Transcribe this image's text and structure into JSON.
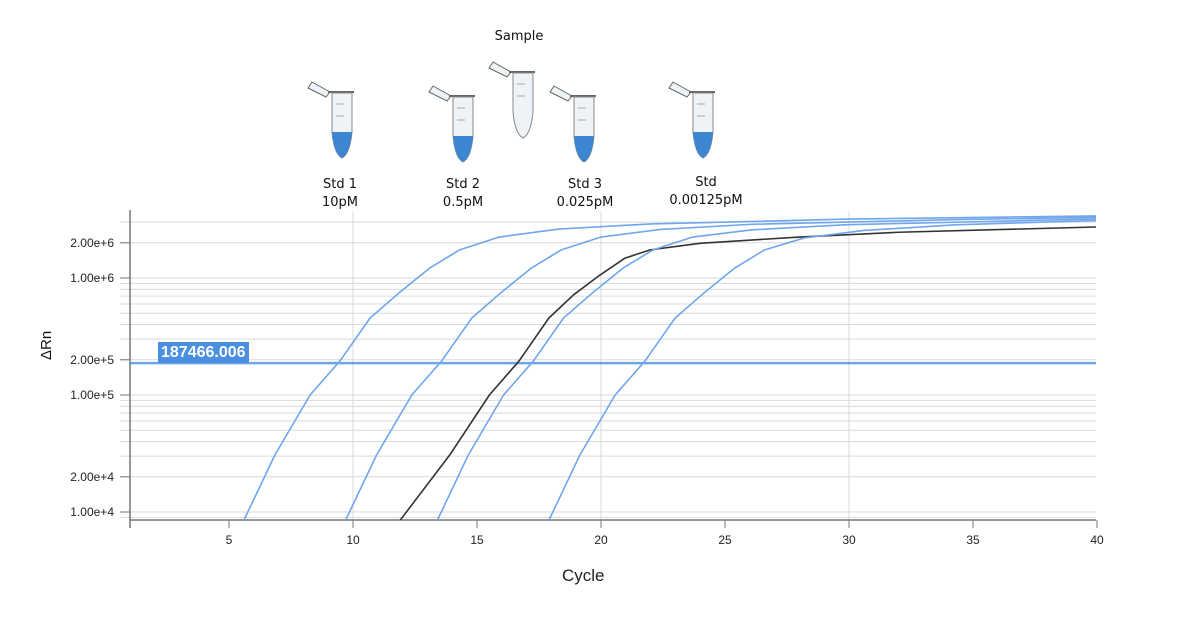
{
  "chart_data": {
    "type": "line",
    "title": "",
    "xlabel": "Cycle",
    "ylabel": "ΔRn",
    "y_scale": "log",
    "xlim": [
      1,
      40
    ],
    "ylim": [
      8500,
      3700000
    ],
    "x_ticks": [
      5,
      10,
      15,
      20,
      25,
      30,
      35,
      40
    ],
    "y_tick_labels": [
      {
        "value": 2000000,
        "label": "2.00e+6"
      },
      {
        "value": 1000000,
        "label": "1.00e+6"
      },
      {
        "value": 200000,
        "label": "2.00e+5"
      },
      {
        "value": 100000,
        "label": "1.00e+5"
      },
      {
        "value": 20000,
        "label": "2.00e+4"
      },
      {
        "value": 10000,
        "label": "1.00e+4"
      }
    ],
    "grid": true,
    "threshold": {
      "value": 187466.006,
      "label": "187466.006",
      "color": "#4a8fe0"
    },
    "series": [
      {
        "color": "#6fa6ec",
        "x": [
          5.6,
          6.85,
          8.27,
          9.48,
          10.69,
          11.9,
          13.1,
          14.3,
          15.9,
          18.3,
          22,
          30,
          40
        ],
        "y": [
          8500,
          30700,
          100000,
          196000,
          455000,
          760000,
          1220000,
          1740000,
          2240000,
          2620000,
          2900000,
          3190000,
          3390000
        ]
      },
      {
        "color": "#6fa6ec",
        "x": [
          9.7,
          10.95,
          12.37,
          13.58,
          14.79,
          16,
          17.2,
          18.4,
          20,
          22.4,
          26.1,
          34.1,
          40
        ],
        "y": [
          8500,
          30700,
          100000,
          196000,
          455000,
          760000,
          1220000,
          1740000,
          2240000,
          2600000,
          2880000,
          3150000,
          3300000
        ]
      },
      {
        "color": "#333333",
        "x": [
          11.9,
          13.9,
          15.5,
          16.7,
          17.9,
          18.9,
          19.96,
          20.97,
          21.98,
          23.99,
          28,
          32,
          40
        ],
        "y": [
          8500,
          30700,
          100000,
          196000,
          455000,
          720000,
          1060000,
          1480000,
          1740000,
          1980000,
          2240000,
          2460000,
          2730000
        ]
      },
      {
        "color": "#6fa6ec",
        "x": [
          13.4,
          14.65,
          16.07,
          17.28,
          18.49,
          19.7,
          20.9,
          22.1,
          23.7,
          26.1,
          29.8,
          37.8,
          40
        ],
        "y": [
          8500,
          30700,
          100000,
          196000,
          455000,
          760000,
          1220000,
          1740000,
          2240000,
          2580000,
          2850000,
          3120000,
          3200000
        ]
      },
      {
        "color": "#6fa6ec",
        "x": [
          17.9,
          19.15,
          20.57,
          21.78,
          22.99,
          24.2,
          25.4,
          26.6,
          28.2,
          30.6,
          34.3,
          40
        ],
        "y": [
          8500,
          30700,
          100000,
          196000,
          455000,
          760000,
          1220000,
          1740000,
          2200000,
          2550000,
          2850000,
          3100000
        ]
      }
    ]
  },
  "tubes": [
    {
      "label_line1": "Std 1",
      "label_line2": "10pM",
      "filled": true
    },
    {
      "label_line1": "Std 2",
      "label_line2": "0.5pM",
      "filled": true
    },
    {
      "label_line1": "Sample",
      "label_line2": "",
      "filled": false
    },
    {
      "label_line1": "Std 3",
      "label_line2": "0.025pM",
      "filled": true
    },
    {
      "label_line1": "Std",
      "label_line2": "0.00125pM",
      "filled": true
    }
  ],
  "colors": {
    "tube_liquid": "#3d86d1",
    "grid": "#d9d9d9",
    "axis": "#777777"
  }
}
